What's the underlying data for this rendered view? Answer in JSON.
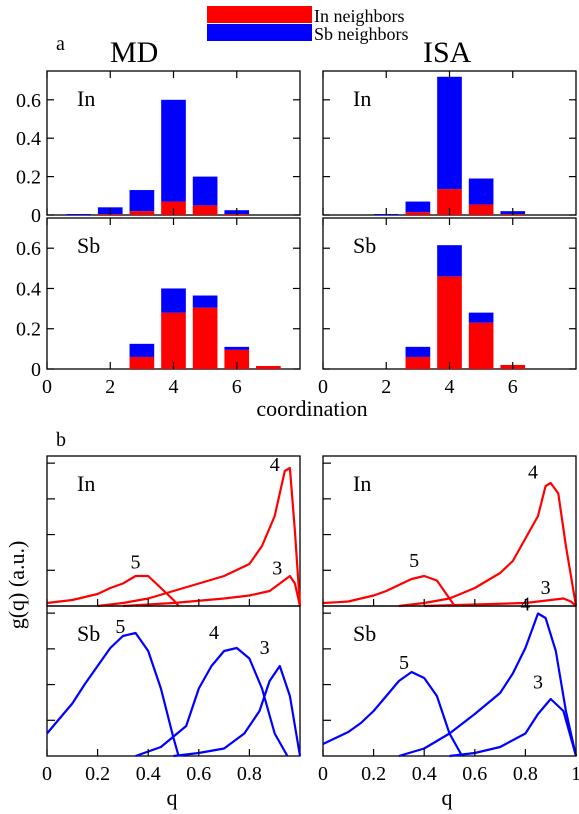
{
  "figure": {
    "panel_a_letter": "a",
    "panel_b_letter": "b",
    "method_left": "MD",
    "method_right": "ISA",
    "legend": [
      {
        "label": "In neighbors",
        "color": "#ff0000"
      },
      {
        "label": "Sb neighbors",
        "color": "#0000ff"
      }
    ],
    "a_xlabel": "coordination",
    "b_ylabel": "g(q) (a.u.)",
    "b_xlabel": "q"
  },
  "chart_data": [
    {
      "type": "bar",
      "panel": "a",
      "method": "MD",
      "species": "In",
      "categories": [
        1,
        2,
        3,
        4,
        5,
        6,
        7
      ],
      "series": [
        {
          "name": "In neighbors",
          "values": [
            0.0,
            0.005,
            0.02,
            0.07,
            0.05,
            0.005,
            0.0
          ]
        },
        {
          "name": "Sb neighbors",
          "values": [
            0.005,
            0.035,
            0.11,
            0.53,
            0.15,
            0.02,
            0.0
          ]
        }
      ],
      "ylim": [
        0,
        0.75
      ],
      "xlim": [
        0,
        8
      ],
      "yticks": [
        0,
        0.2,
        0.4,
        0.6
      ],
      "xticks": [
        0,
        2,
        4,
        6
      ],
      "stacked": true
    },
    {
      "type": "bar",
      "panel": "a",
      "method": "ISA",
      "species": "In",
      "categories": [
        1,
        2,
        3,
        4,
        5,
        6,
        7
      ],
      "series": [
        {
          "name": "In neighbors",
          "values": [
            0.0,
            0.0,
            0.015,
            0.135,
            0.055,
            0.005,
            0.0
          ]
        },
        {
          "name": "Sb neighbors",
          "values": [
            0.0,
            0.005,
            0.055,
            0.585,
            0.135,
            0.015,
            0.0
          ]
        }
      ],
      "ylim": [
        0,
        0.75
      ],
      "xlim": [
        0,
        8
      ],
      "yticks": [
        0,
        0.2,
        0.4,
        0.6
      ],
      "xticks": [
        0,
        2,
        4,
        6
      ],
      "stacked": true
    },
    {
      "type": "bar",
      "panel": "a",
      "method": "MD",
      "species": "Sb",
      "categories": [
        1,
        2,
        3,
        4,
        5,
        6,
        7
      ],
      "series": [
        {
          "name": "In neighbors",
          "values": [
            0.0,
            0.0,
            0.06,
            0.28,
            0.305,
            0.095,
            0.015
          ]
        },
        {
          "name": "Sb neighbors",
          "values": [
            0.0,
            0.0,
            0.065,
            0.12,
            0.06,
            0.015,
            0.0
          ]
        }
      ],
      "ylim": [
        0,
        0.75
      ],
      "xlim": [
        0,
        8
      ],
      "yticks": [
        0,
        0.2,
        0.4,
        0.6
      ],
      "xticks": [
        0,
        2,
        4,
        6
      ],
      "stacked": true
    },
    {
      "type": "bar",
      "panel": "a",
      "method": "ISA",
      "species": "Sb",
      "categories": [
        1,
        2,
        3,
        4,
        5,
        6,
        7
      ],
      "series": [
        {
          "name": "In neighbors",
          "values": [
            0.0,
            0.0,
            0.06,
            0.46,
            0.23,
            0.02,
            0.0
          ]
        },
        {
          "name": "Sb neighbors",
          "values": [
            0.0,
            0.0,
            0.05,
            0.155,
            0.05,
            0.0,
            0.0
          ]
        }
      ],
      "ylim": [
        0,
        0.75
      ],
      "xlim": [
        0,
        8
      ],
      "yticks": [
        0,
        0.2,
        0.4,
        0.6
      ],
      "xticks": [
        0,
        2,
        4,
        6
      ],
      "stacked": true
    },
    {
      "type": "line",
      "panel": "b",
      "method": "MD",
      "species": "In",
      "color": "#ff0000",
      "xlim": [
        0,
        1
      ],
      "ylim": [
        0,
        1
      ],
      "xticks": [
        0,
        0.2,
        0.4,
        0.6,
        0.8
      ],
      "series": [
        {
          "name": "5",
          "x": [
            0.0,
            0.05,
            0.1,
            0.15,
            0.2,
            0.25,
            0.3,
            0.35,
            0.4,
            0.45,
            0.5,
            0.52
          ],
          "y": [
            0.02,
            0.03,
            0.04,
            0.06,
            0.08,
            0.12,
            0.15,
            0.2,
            0.2,
            0.12,
            0.04,
            0.0
          ]
        },
        {
          "name": "4",
          "x": [
            0.2,
            0.3,
            0.4,
            0.5,
            0.6,
            0.7,
            0.8,
            0.85,
            0.9,
            0.94,
            0.96,
            0.98,
            1.0
          ],
          "y": [
            0.0,
            0.02,
            0.05,
            0.1,
            0.15,
            0.2,
            0.28,
            0.4,
            0.6,
            0.9,
            0.92,
            0.5,
            0.0
          ]
        },
        {
          "name": "3",
          "x": [
            0.3,
            0.5,
            0.7,
            0.8,
            0.88,
            0.92,
            0.96,
            0.98,
            1.0
          ],
          "y": [
            0.0,
            0.02,
            0.05,
            0.07,
            0.1,
            0.15,
            0.2,
            0.15,
            0.0
          ]
        }
      ],
      "labels": [
        {
          "text": "5",
          "x": 0.35,
          "y": 0.25
        },
        {
          "text": "4",
          "x": 0.9,
          "y": 0.9
        },
        {
          "text": "3",
          "x": 0.91,
          "y": 0.21
        }
      ]
    },
    {
      "type": "line",
      "panel": "b",
      "method": "ISA",
      "species": "In",
      "color": "#ff0000",
      "xlim": [
        0,
        1
      ],
      "ylim": [
        0,
        1
      ],
      "xticks": [
        0,
        0.2,
        0.4,
        0.6,
        0.8,
        1
      ],
      "series": [
        {
          "name": "5",
          "x": [
            0.0,
            0.05,
            0.1,
            0.15,
            0.2,
            0.25,
            0.3,
            0.35,
            0.4,
            0.45,
            0.5,
            0.52
          ],
          "y": [
            0.02,
            0.025,
            0.03,
            0.05,
            0.07,
            0.1,
            0.14,
            0.18,
            0.2,
            0.17,
            0.05,
            0.0
          ]
        },
        {
          "name": "4",
          "x": [
            0.3,
            0.4,
            0.5,
            0.6,
            0.7,
            0.75,
            0.8,
            0.85,
            0.88,
            0.9,
            0.93,
            0.96,
            1.0
          ],
          "y": [
            0.0,
            0.02,
            0.05,
            0.12,
            0.22,
            0.3,
            0.45,
            0.6,
            0.8,
            0.82,
            0.75,
            0.4,
            0.0
          ]
        },
        {
          "name": "3",
          "x": [
            0.4,
            0.6,
            0.8,
            0.9,
            0.95,
            0.98,
            1.0
          ],
          "y": [
            0.0,
            0.01,
            0.02,
            0.04,
            0.05,
            0.03,
            0.0
          ]
        }
      ],
      "labels": [
        {
          "text": "5",
          "x": 0.36,
          "y": 0.26
        },
        {
          "text": "4",
          "x": 0.83,
          "y": 0.85
        },
        {
          "text": "3",
          "x": 0.88,
          "y": 0.08
        }
      ]
    },
    {
      "type": "line",
      "panel": "b",
      "method": "MD",
      "species": "Sb",
      "color": "#0000ff",
      "xlim": [
        0,
        1
      ],
      "ylim": [
        0,
        1
      ],
      "xticks": [
        0,
        0.2,
        0.4,
        0.6,
        0.8
      ],
      "series": [
        {
          "name": "5",
          "x": [
            0.0,
            0.05,
            0.1,
            0.15,
            0.2,
            0.25,
            0.3,
            0.35,
            0.4,
            0.45,
            0.5,
            0.52
          ],
          "y": [
            0.15,
            0.25,
            0.35,
            0.48,
            0.6,
            0.72,
            0.8,
            0.82,
            0.7,
            0.45,
            0.12,
            0.0
          ]
        },
        {
          "name": "4",
          "x": [
            0.35,
            0.45,
            0.55,
            0.6,
            0.65,
            0.7,
            0.75,
            0.8,
            0.85,
            0.9,
            0.95
          ],
          "y": [
            0.0,
            0.06,
            0.2,
            0.45,
            0.6,
            0.7,
            0.72,
            0.65,
            0.45,
            0.15,
            0.0
          ]
        },
        {
          "name": "3",
          "x": [
            0.5,
            0.6,
            0.7,
            0.78,
            0.84,
            0.88,
            0.92,
            0.96,
            1.0
          ],
          "y": [
            0.0,
            0.02,
            0.05,
            0.15,
            0.3,
            0.5,
            0.6,
            0.4,
            0.0
          ]
        }
      ],
      "labels": [
        {
          "text": "5",
          "x": 0.29,
          "y": 0.82
        },
        {
          "text": "4",
          "x": 0.66,
          "y": 0.78
        },
        {
          "text": "3",
          "x": 0.86,
          "y": 0.68
        }
      ]
    },
    {
      "type": "line",
      "panel": "b",
      "method": "ISA",
      "species": "Sb",
      "color": "#0000ff",
      "xlim": [
        0,
        1
      ],
      "ylim": [
        0,
        1
      ],
      "xticks": [
        0,
        0.2,
        0.4,
        0.6,
        0.8,
        1
      ],
      "series": [
        {
          "name": "5",
          "x": [
            0.0,
            0.05,
            0.1,
            0.15,
            0.2,
            0.25,
            0.3,
            0.35,
            0.4,
            0.45,
            0.5,
            0.55
          ],
          "y": [
            0.08,
            0.12,
            0.16,
            0.22,
            0.3,
            0.4,
            0.5,
            0.56,
            0.52,
            0.4,
            0.15,
            0.0
          ]
        },
        {
          "name": "4",
          "x": [
            0.3,
            0.4,
            0.5,
            0.6,
            0.7,
            0.75,
            0.8,
            0.85,
            0.88,
            0.92,
            0.96,
            1.0
          ],
          "y": [
            0.0,
            0.05,
            0.15,
            0.28,
            0.42,
            0.55,
            0.72,
            0.95,
            0.92,
            0.7,
            0.3,
            0.0
          ]
        },
        {
          "name": "3",
          "x": [
            0.5,
            0.6,
            0.7,
            0.8,
            0.85,
            0.9,
            0.95,
            1.0
          ],
          "y": [
            0.0,
            0.02,
            0.06,
            0.15,
            0.28,
            0.38,
            0.3,
            0.0
          ]
        }
      ],
      "labels": [
        {
          "text": "5",
          "x": 0.32,
          "y": 0.58
        },
        {
          "text": "4",
          "x": 0.8,
          "y": 0.97
        },
        {
          "text": "3",
          "x": 0.85,
          "y": 0.45
        }
      ]
    }
  ]
}
